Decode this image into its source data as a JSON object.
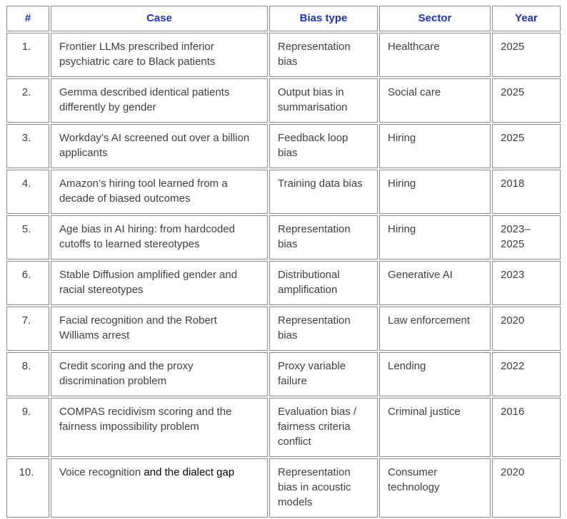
{
  "colors": {
    "header_text": "#1b35c8",
    "body_text": "#3d4043",
    "border": "#8c8c8c",
    "emphasis_text": "#000000",
    "background": "#ffffff"
  },
  "table": {
    "columns": [
      "#",
      "Case",
      "Bias type",
      "Sector",
      "Year"
    ],
    "rows": [
      {
        "num": "1.",
        "case": "Frontier LLMs prescribed inferior psychiatric care to Black patients",
        "bias_type": "Representation bias",
        "sector": "Healthcare",
        "year": "2025"
      },
      {
        "num": "2.",
        "case": "Gemma described identical patients differently by gender",
        "bias_type": "Output bias in summarisation",
        "sector": "Social care",
        "year": "2025"
      },
      {
        "num": "3.",
        "case": "Workday’s AI screened out over a billion applicants",
        "bias_type": "Feedback loop bias",
        "sector": "Hiring",
        "year": "2025"
      },
      {
        "num": "4.",
        "case": "Amazon’s hiring tool learned from a decade of biased outcomes",
        "bias_type": "Training data bias",
        "sector": "Hiring",
        "year": "2018"
      },
      {
        "num": "5.",
        "case": "Age bias in AI hiring: from hardcoded cutoffs to learned stereotypes",
        "bias_type": "Representation bias",
        "sector": "Hiring",
        "year": "2023–2025"
      },
      {
        "num": "6.",
        "case": "Stable Diffusion amplified gender and racial stereotypes",
        "bias_type": "Distributional amplification",
        "sector": "Generative AI",
        "year": "2023"
      },
      {
        "num": "7.",
        "case": "Facial recognition and the Robert Williams arrest",
        "bias_type": "Representation bias",
        "sector": "Law enforcement",
        "year": "2020"
      },
      {
        "num": "8.",
        "case": "Credit scoring and the proxy discrimination problem",
        "bias_type": "Proxy variable failure",
        "sector": "Lending",
        "year": "2022"
      },
      {
        "num": "9.",
        "case": "COMPAS recidivism scoring and the fairness impossibility problem",
        "bias_type": "Evaluation bias / fairness criteria conflict",
        "sector": "Criminal justice",
        "year": "2016"
      },
      {
        "num": "10.",
        "case": "Voice recognition ",
        "case_emphasis": "and the dialect gap",
        "bias_type": "Representation bias in acoustic models",
        "sector": "Consumer technology",
        "year": "2020"
      }
    ]
  }
}
